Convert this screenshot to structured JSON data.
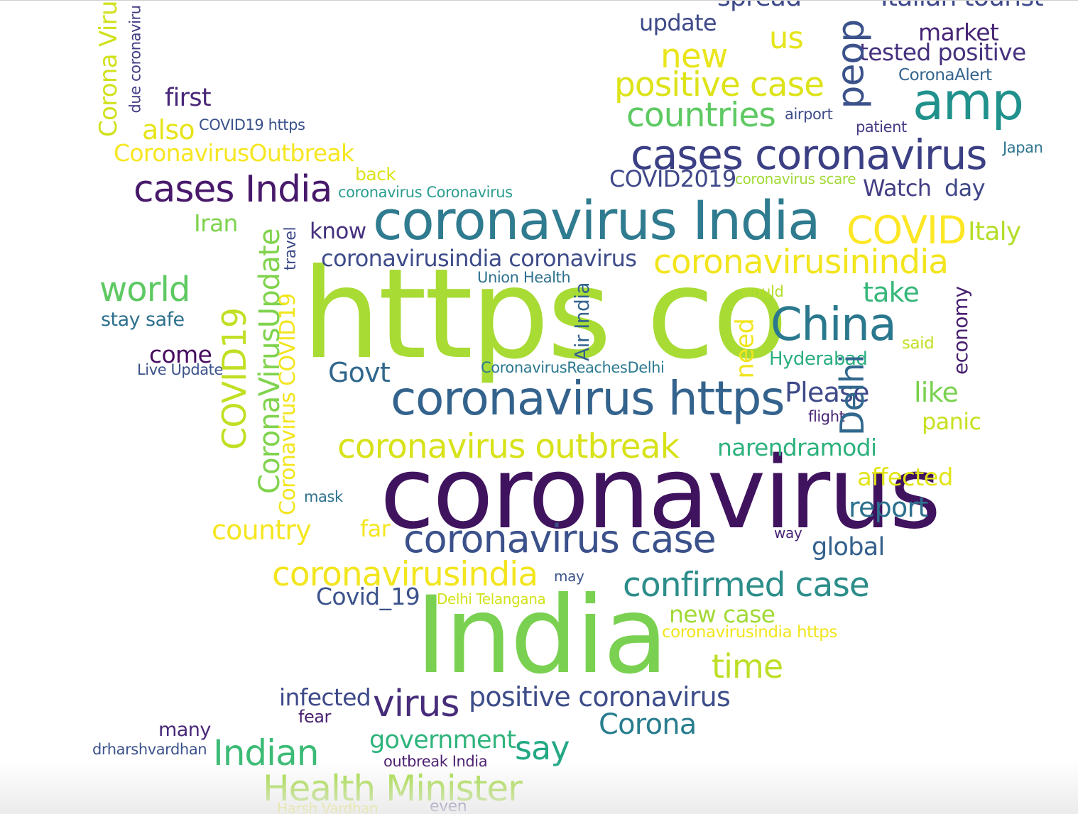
{
  "colors": {
    "c1": "#440154",
    "c2": "#3b528b",
    "c3": "#2a788e",
    "c4": "#22a884",
    "c5": "#7ad151",
    "c6": "#a8db34",
    "c7": "#fde725",
    "c8": "#e4e419"
  },
  "words": [
    {
      "text": "https co",
      "color": "#a8db34"
    },
    {
      "text": "coronavirus",
      "color": "#40135f"
    },
    {
      "text": "India",
      "color": "#7ad151"
    },
    {
      "text": "coronavirus India",
      "color": "#2f7b8f"
    },
    {
      "text": "coronavirus https",
      "color": "#33638d"
    },
    {
      "text": "cases coronavirus",
      "color": "#3b3f84"
    },
    {
      "text": "coronavirus case",
      "color": "#3b518b"
    },
    {
      "text": "China",
      "color": "#2a788e"
    },
    {
      "text": "amp",
      "color": "#21918c"
    },
    {
      "text": "cases India",
      "color": "#48196b"
    },
    {
      "text": "positive case",
      "color": "#dde318"
    },
    {
      "text": "coronavirus outbreak",
      "color": "#d8e219"
    },
    {
      "text": "confirmed case",
      "color": "#2c8d8a"
    },
    {
      "text": "coronavirusinindia",
      "color": "#f2e51d"
    },
    {
      "text": "coronavirusindia",
      "color": "#f3e51e"
    },
    {
      "text": "COVID",
      "color": "#fde725"
    },
    {
      "text": "countries",
      "color": "#5ec962"
    },
    {
      "text": "new",
      "color": "#e9e51a"
    },
    {
      "text": "world",
      "color": "#5ec962"
    },
    {
      "text": "Health Minister",
      "color": "#a0da39"
    },
    {
      "text": "virus",
      "color": "#472c7a"
    },
    {
      "text": "Indian",
      "color": "#3bbb75"
    },
    {
      "text": "positive coronavirus",
      "color": "#3d4d8a"
    },
    {
      "text": "Delhi",
      "color": "#31688e"
    },
    {
      "text": "COVID19",
      "color": "#c2df23"
    },
    {
      "text": "CoronaVirusUpdate",
      "color": "#80d34d"
    },
    {
      "text": "peop",
      "color": "#3b528b"
    },
    {
      "text": "Govt",
      "color": "#31688e"
    },
    {
      "text": "Please",
      "color": "#3e4a89"
    },
    {
      "text": "time",
      "color": "#bddf26"
    },
    {
      "text": "tested positive",
      "color": "#46317e"
    },
    {
      "text": "market",
      "color": "#482576"
    },
    {
      "text": "say",
      "color": "#22a884"
    },
    {
      "text": "us",
      "color": "#e5e419"
    },
    {
      "text": "Corona",
      "color": "#287d8e"
    },
    {
      "text": "like",
      "color": "#7ad151"
    },
    {
      "text": "take",
      "color": "#35b779"
    },
    {
      "text": "report",
      "color": "#2d708e"
    },
    {
      "text": "Italy",
      "color": "#b5de2b"
    },
    {
      "text": "Watch",
      "color": "#433e85"
    },
    {
      "text": "day",
      "color": "#3f4788"
    },
    {
      "text": "narendramodi",
      "color": "#2db27d"
    },
    {
      "text": "global",
      "color": "#34608d"
    },
    {
      "text": "country",
      "color": "#f6e620"
    },
    {
      "text": "government",
      "color": "#2fb47c"
    },
    {
      "text": "affected",
      "color": "#e2e418"
    },
    {
      "text": "new case",
      "color": "#a2da37"
    },
    {
      "text": "infected",
      "color": "#3e4989"
    },
    {
      "text": "Covid_19",
      "color": "#3b528b"
    },
    {
      "text": "first",
      "color": "#482677"
    },
    {
      "text": "also",
      "color": "#e7e419"
    },
    {
      "text": "CoronavirusOutbreak",
      "color": "#f6e620"
    },
    {
      "text": "coronavirusindia coronavirus",
      "color": "#3e4c8a"
    },
    {
      "text": "update",
      "color": "#3e4989"
    },
    {
      "text": "COVID2019",
      "color": "#3f4889"
    },
    {
      "text": "know",
      "color": "#46307e"
    },
    {
      "text": "Iran",
      "color": "#7fd34e"
    },
    {
      "text": "come",
      "color": "#470d60"
    },
    {
      "text": "need",
      "color": "#f1e51d"
    },
    {
      "text": "economy",
      "color": "#482071"
    },
    {
      "text": "Air India",
      "color": "#33638d"
    },
    {
      "text": "Corona Viru",
      "color": "#d0e11c"
    },
    {
      "text": "due coronaviru",
      "color": "#433e85"
    },
    {
      "text": "Hyderabad",
      "color": "#29af7f"
    },
    {
      "text": "panic",
      "color": "#c8e020"
    },
    {
      "text": "far",
      "color": "#f4e61e"
    },
    {
      "text": "many",
      "color": "#482878"
    },
    {
      "text": "stay safe",
      "color": "#2d708e"
    },
    {
      "text": "Live Update",
      "color": "#3b528b"
    },
    {
      "text": "Union Health",
      "color": "#2d708e"
    },
    {
      "text": "CoronavirusReachesDelhi",
      "color": "#2a788e"
    },
    {
      "text": "coronavirus Coronavirus",
      "color": "#2a9d8f"
    },
    {
      "text": "coronavirus scare",
      "color": "#a2da37"
    },
    {
      "text": "back",
      "color": "#dde318"
    },
    {
      "text": "COVID19 https",
      "color": "#3b528b"
    },
    {
      "text": "CoronaAlert",
      "color": "#33638d"
    },
    {
      "text": "airport",
      "color": "#3e4c8a"
    },
    {
      "text": "patient",
      "color": "#443a83"
    },
    {
      "text": "Japan",
      "color": "#2c738e"
    },
    {
      "text": "would",
      "color": "#b5de2b"
    },
    {
      "text": "said",
      "color": "#c2df23"
    },
    {
      "text": "flight",
      "color": "#482475"
    },
    {
      "text": "mask",
      "color": "#2d708e"
    },
    {
      "text": "way",
      "color": "#482475"
    },
    {
      "text": "may",
      "color": "#3b528b"
    },
    {
      "text": "Delhi Telangana",
      "color": "#d2e21b"
    },
    {
      "text": "coronavirusindia https",
      "color": "#f1e51d"
    },
    {
      "text": "fear",
      "color": "#481f70"
    },
    {
      "text": "drharshvardhan",
      "color": "#3b528b"
    },
    {
      "text": "outbreak India",
      "color": "#481b6d"
    },
    {
      "text": "Harsh Vardhan",
      "color": "#e5e419"
    },
    {
      "text": "even",
      "color": "#46337f"
    },
    {
      "text": "travel",
      "color": "#3e4a89"
    },
    {
      "text": "Coronavirus COVID19",
      "color": "#f2e51d"
    },
    {
      "text": "spread",
      "color": "#3e4989"
    },
    {
      "text": "Italian tourist",
      "color": "#3e4989"
    }
  ]
}
